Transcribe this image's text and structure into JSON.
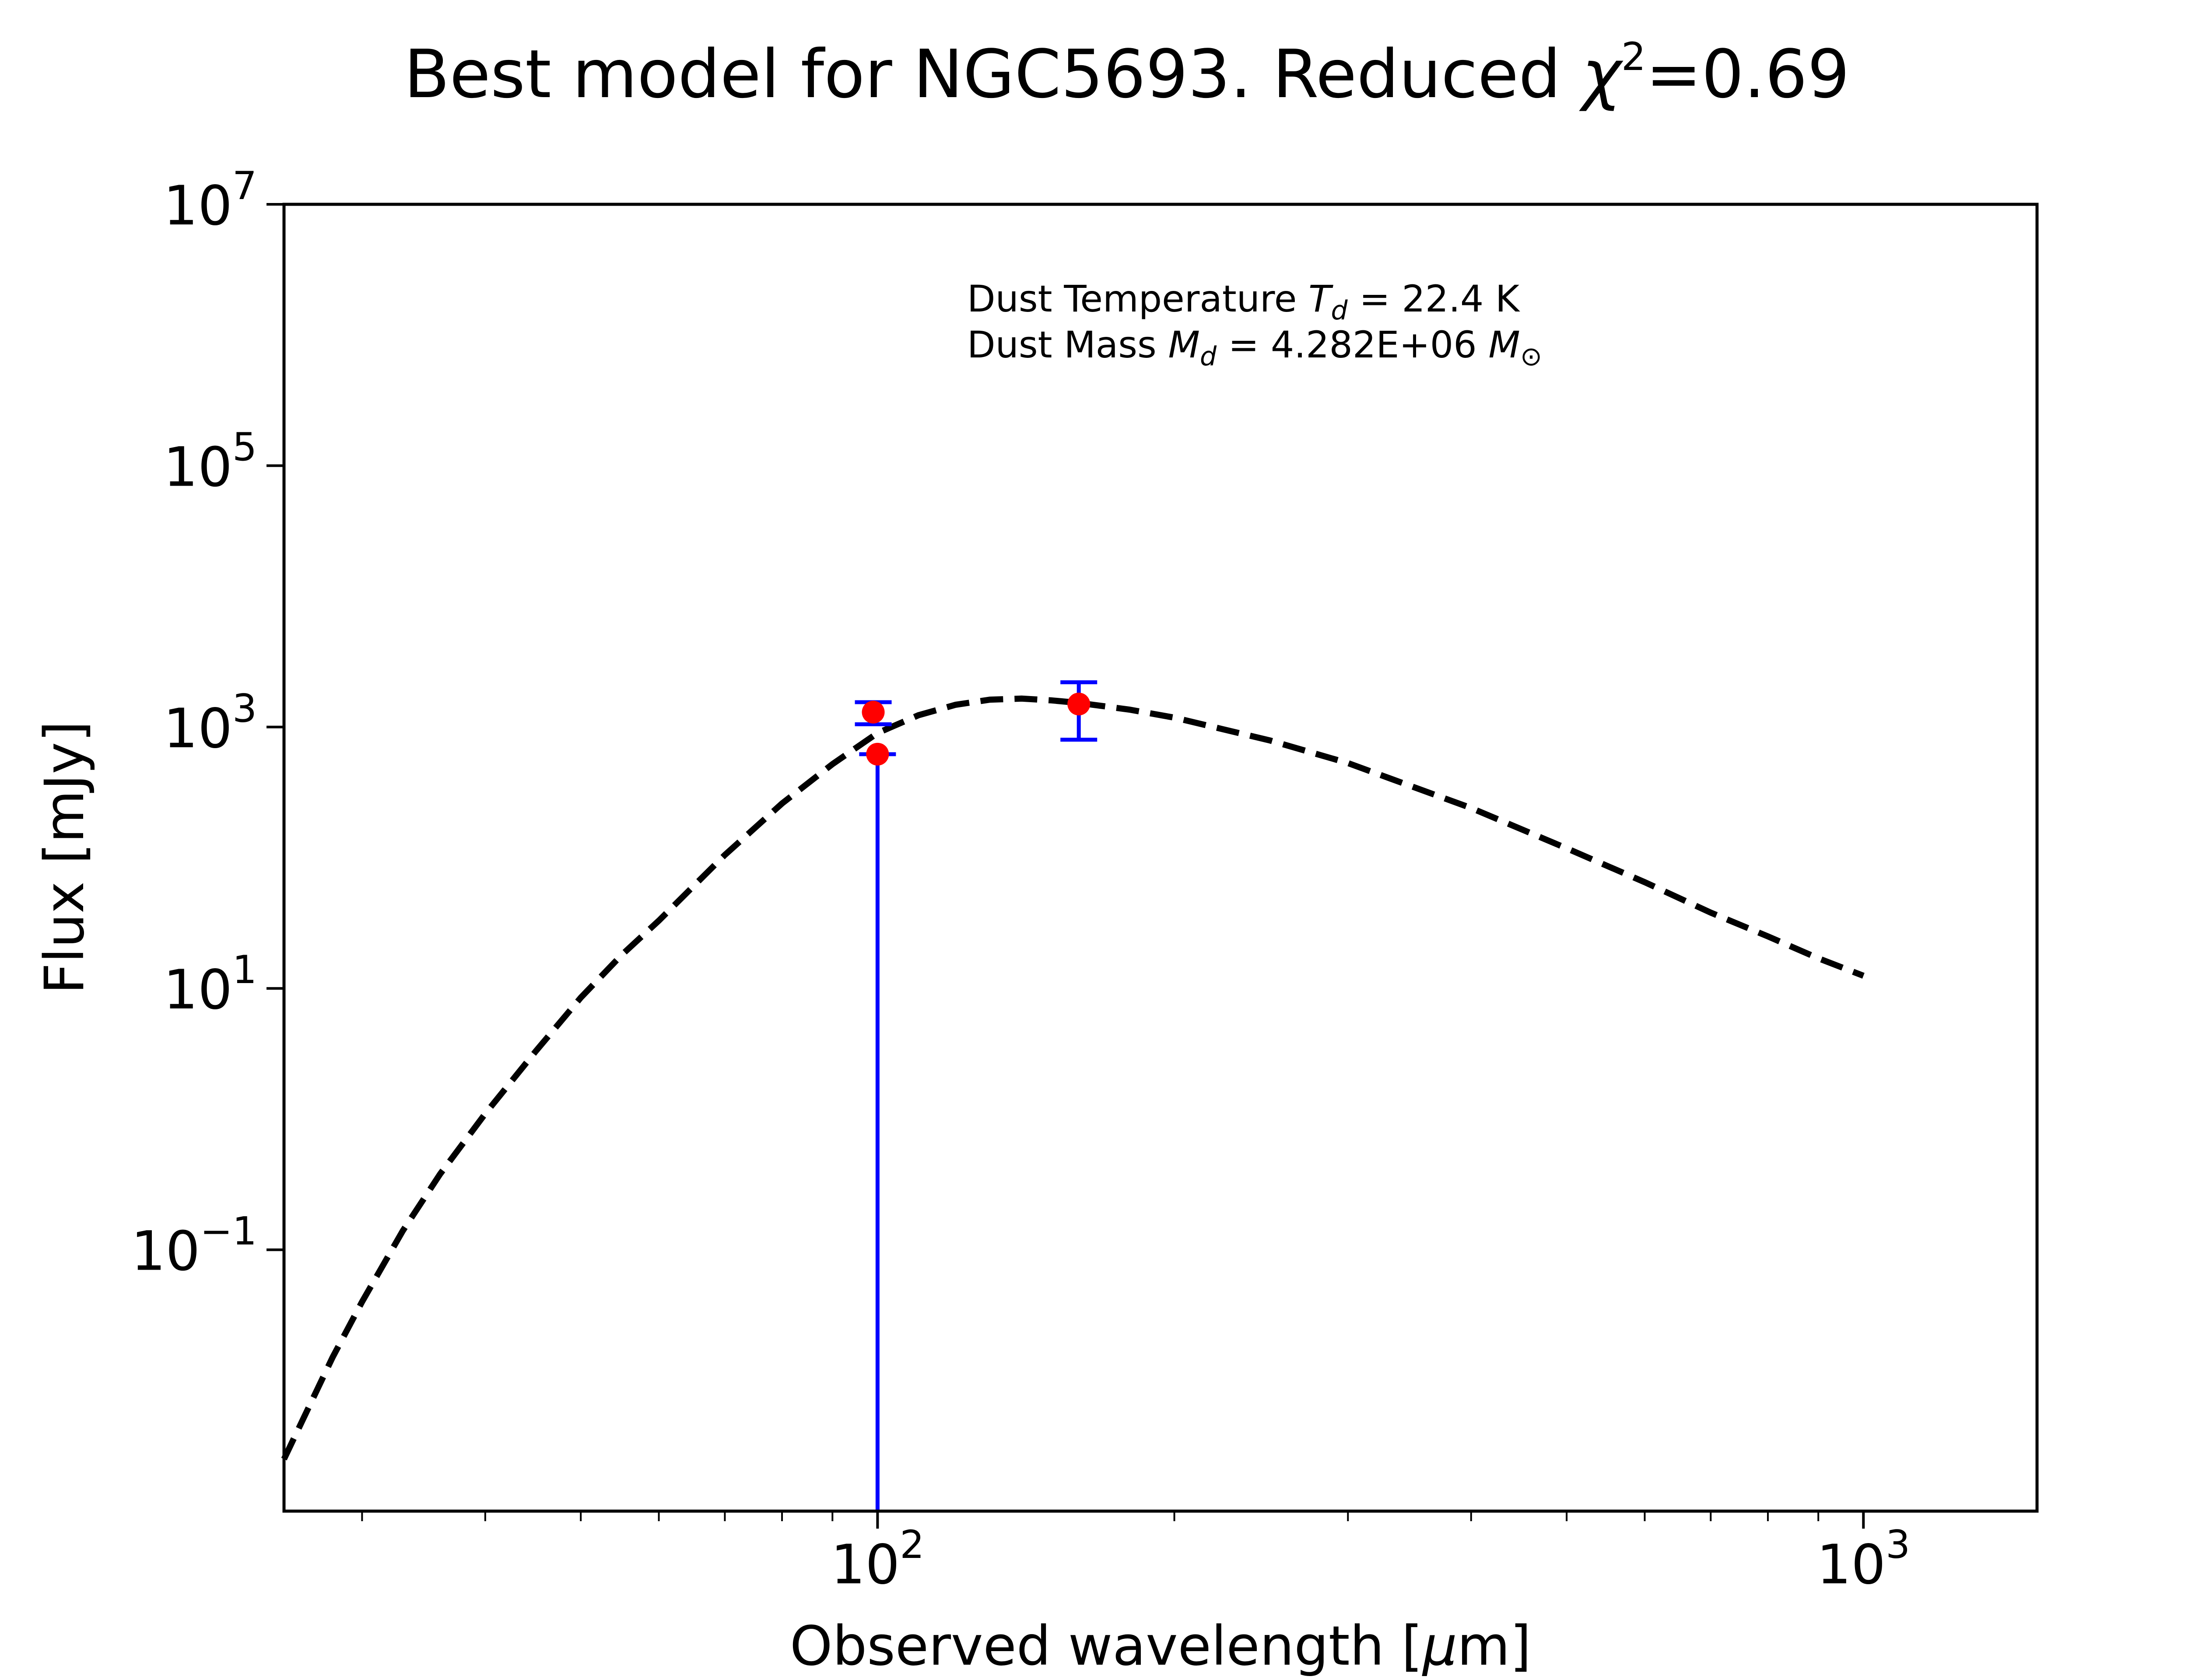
{
  "chart_data": {
    "type": "line",
    "title": {
      "text": "Best model for NGC5693. Reduced ",
      "chi_symbol": "χ",
      "chi_exp": "2",
      "chi_value": "=0.69"
    },
    "xlabel": {
      "prefix": "Observed wavelength [",
      "mu": "μ",
      "suffix": "m]"
    },
    "ylabel": "Flux [mJy]",
    "x_scale": "log",
    "y_scale": "log",
    "xlim": [
      25,
      1500
    ],
    "ylim": [
      0.001,
      10000000
    ],
    "grid": false,
    "x_ticks": [
      {
        "value": 100,
        "base": "10",
        "exp": "2"
      },
      {
        "value": 1000,
        "base": "10",
        "exp": "3"
      }
    ],
    "y_ticks": [
      {
        "value": 0.1,
        "base": "10",
        "exp": "−1"
      },
      {
        "value": 10,
        "base": "10",
        "exp": "1"
      },
      {
        "value": 1000,
        "base": "10",
        "exp": "3"
      },
      {
        "value": 100000,
        "base": "10",
        "exp": "5"
      },
      {
        "value": 10000000,
        "base": "10",
        "exp": "7"
      }
    ],
    "annotations": [
      {
        "prefix": "Dust Temperature ",
        "sym": "T",
        "sub": "d",
        "mid": " = 22.4 K",
        "unit": "",
        "unit_sub": ""
      },
      {
        "prefix": "Dust Mass ",
        "sym": "M",
        "sub": "d",
        "mid": " = 4.282E+06 ",
        "unit": "M",
        "unit_sub": "⊙"
      }
    ],
    "model_curve": {
      "style": "dashed",
      "color": "#000000",
      "x": [
        25,
        28,
        30,
        33,
        36,
        40,
        45,
        50,
        55,
        60,
        70,
        80,
        90,
        100,
        110,
        120,
        130,
        140,
        150,
        160,
        180,
        200,
        250,
        300,
        400,
        500,
        600,
        700,
        800,
        900,
        1000
      ],
      "y": [
        0.0025,
        0.015,
        0.04,
        0.14,
        0.38,
        1.1,
        3.3,
        8.5,
        18,
        33,
        105,
        260,
        520,
        900,
        1230,
        1480,
        1620,
        1650,
        1600,
        1530,
        1360,
        1180,
        790,
        530,
        240,
        118,
        65,
        38,
        25,
        17,
        12.5
      ]
    },
    "data_points": [
      {
        "x": 99,
        "y": 1300,
        "yerr_low": 1050,
        "yerr_high": 1550
      },
      {
        "x": 100,
        "y": 620,
        "yerr_low": 0.001,
        "yerr_high": 620
      },
      {
        "x": 160,
        "y": 1500,
        "yerr_low": 800,
        "yerr_high": 2200
      }
    ],
    "point_color": "#ff0000",
    "errorbar_color": "#0000ff"
  }
}
